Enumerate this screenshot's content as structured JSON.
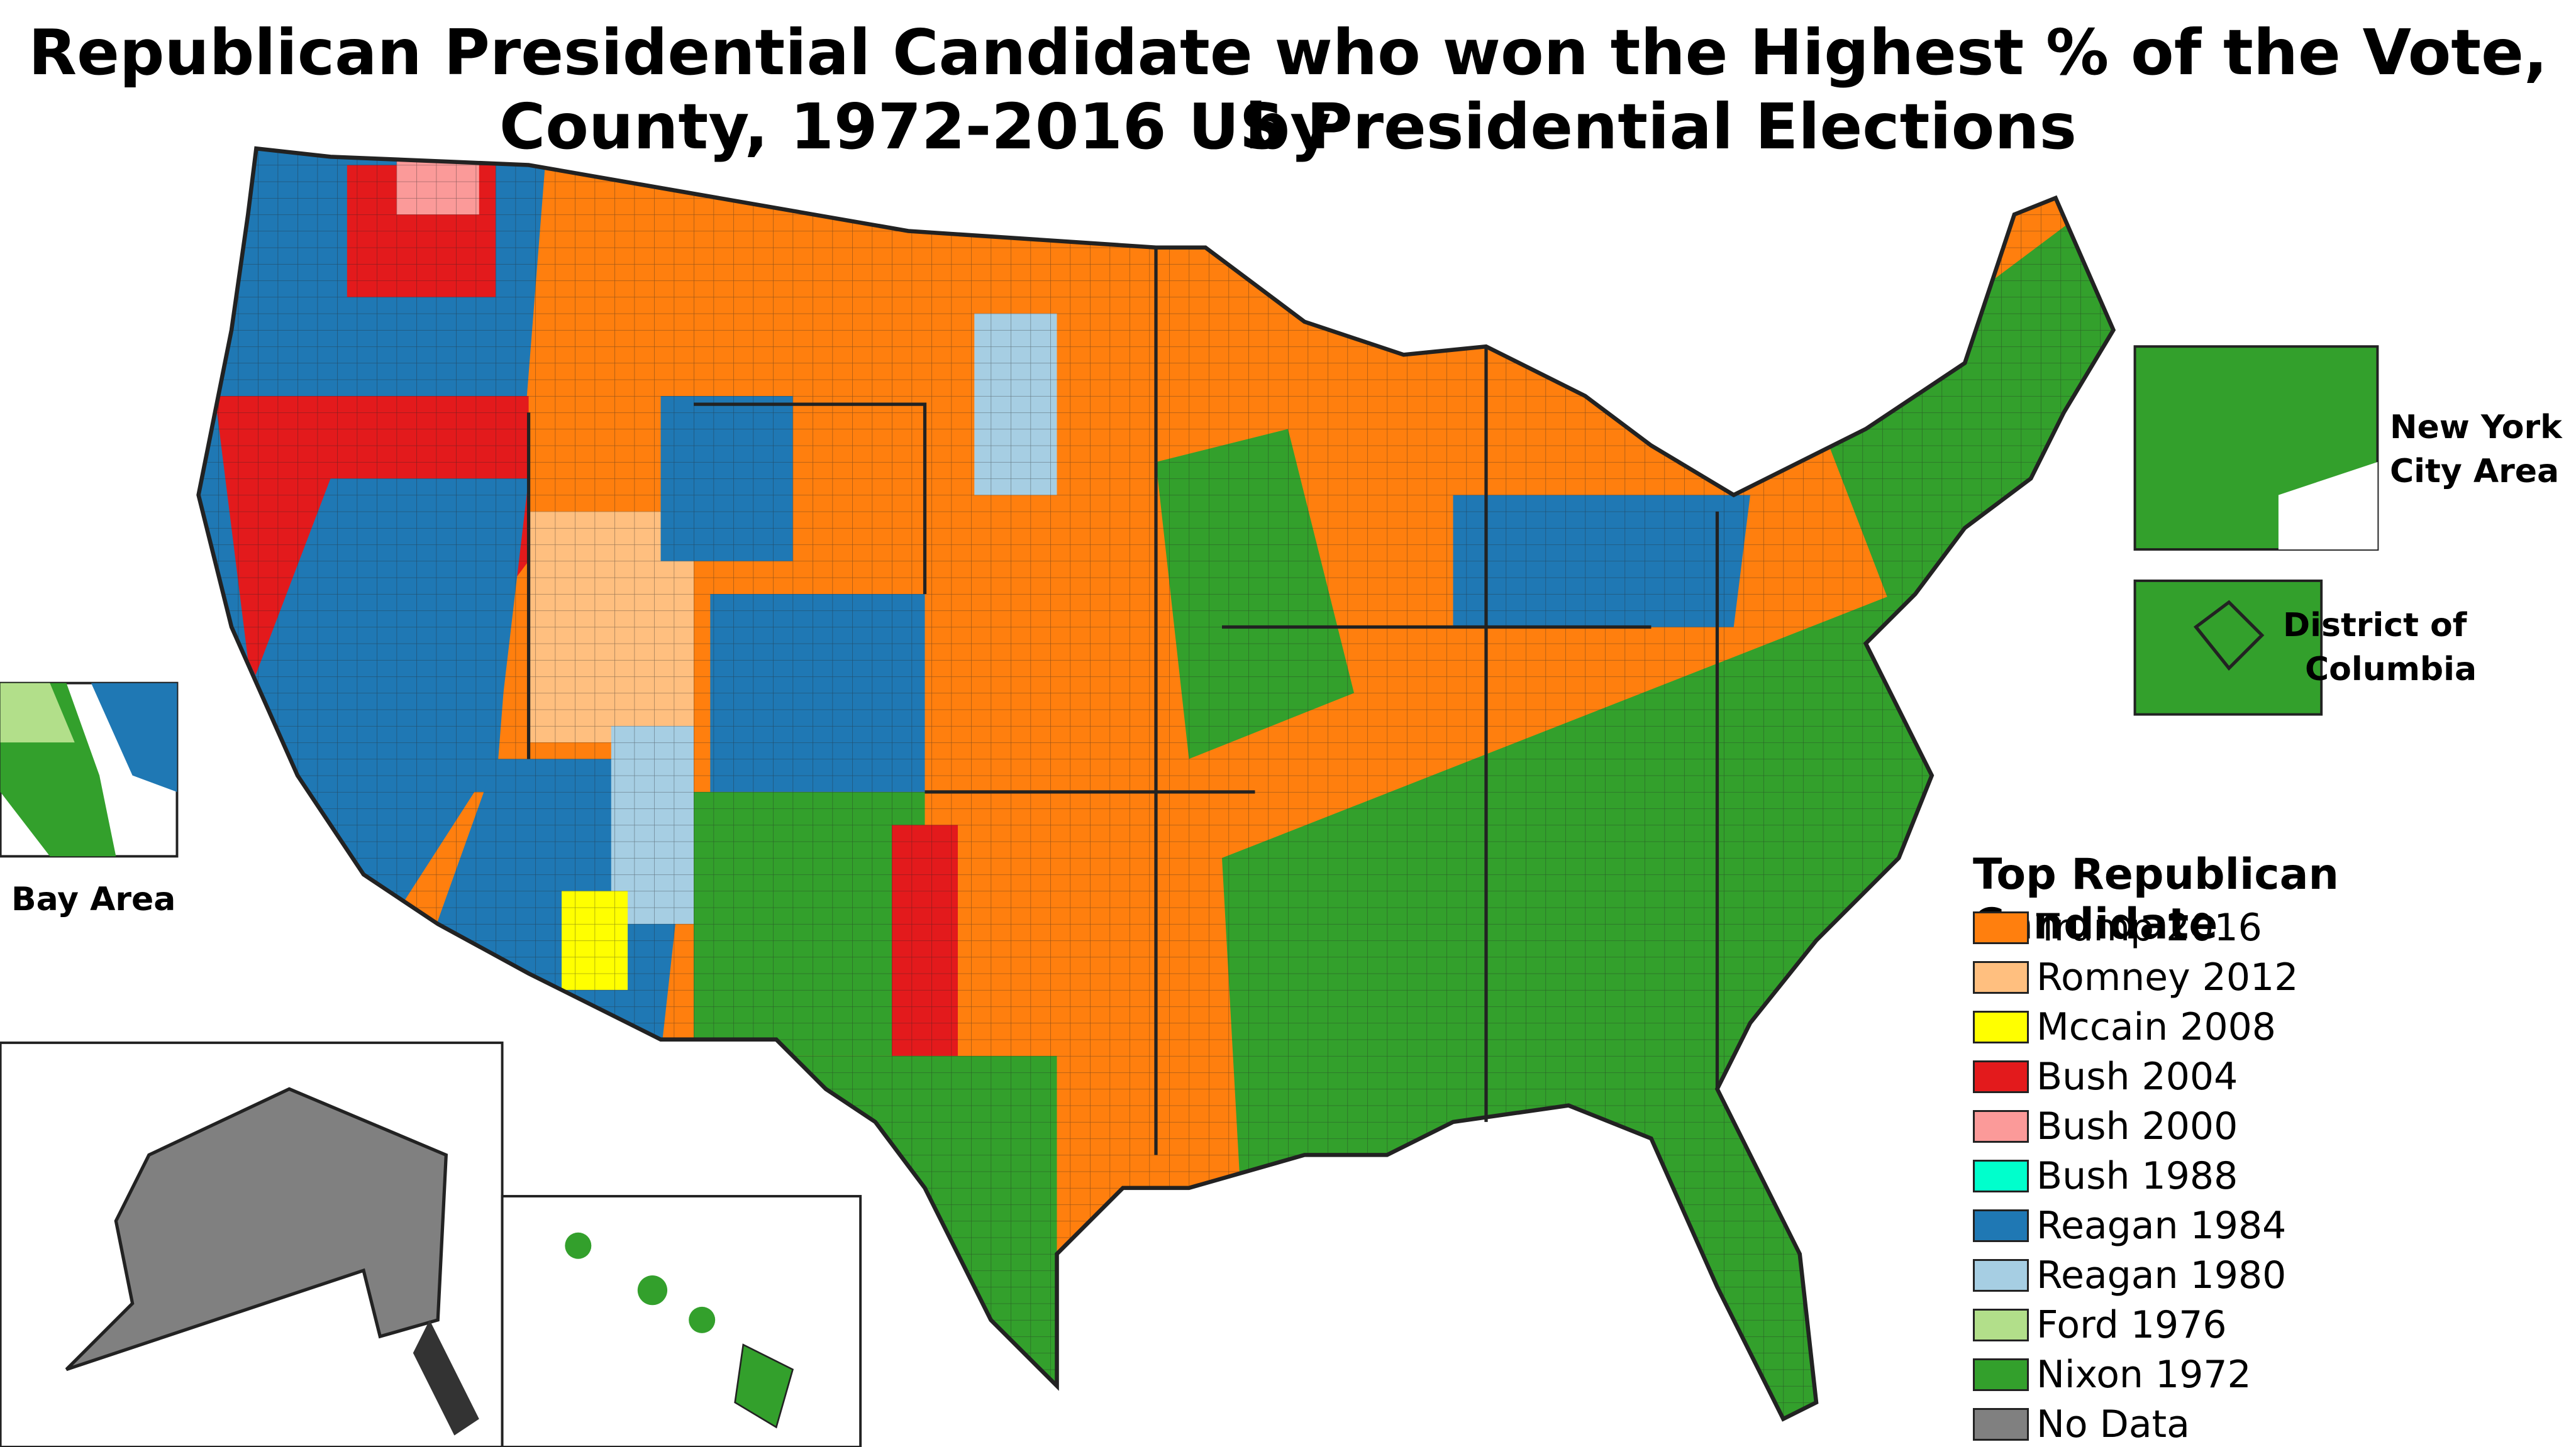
{
  "header": {
    "title_lines": [
      "Republican Presidential Candidate who won the Highest % of the Vote, by",
      "County, 1972-2016 US Presidential Elections"
    ]
  },
  "insets": {
    "nyc": [
      "New York",
      "City Area"
    ],
    "dc": [
      "District of",
      "Columbia"
    ],
    "bay": "Bay Area"
  },
  "legend": {
    "title": "Top Republican Candidate",
    "items": [
      {
        "name": "Trump 2016",
        "color": "#ff7f0e"
      },
      {
        "name": "Romney 2012",
        "color": "#ffbf7f"
      },
      {
        "name": "Mccain 2008",
        "color": "#ffff00"
      },
      {
        "name": "Bush 2004",
        "color": "#e31a1c"
      },
      {
        "name": "Bush 2000",
        "color": "#fb9a99"
      },
      {
        "name": "Bush 1988",
        "color": "#00ffcc"
      },
      {
        "name": "Reagan 1984",
        "color": "#1f78b4"
      },
      {
        "name": "Reagan 1980",
        "color": "#a6cee3"
      },
      {
        "name": "Ford 1976",
        "color": "#b2df8a"
      },
      {
        "name": "Nixon 1972",
        "color": "#33a02c"
      },
      {
        "name": "No Data",
        "color": "#808080"
      }
    ]
  }
}
